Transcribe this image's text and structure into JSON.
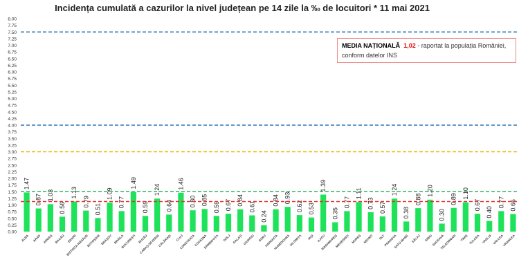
{
  "chart_data": {
    "type": "bar",
    "title": "Incidența cumulată a cazurilor la nivel județean pe 14 zile la ‰ de locuitori *  11 mai 2021",
    "categories": [
      "ALBA",
      "ARAD",
      "ARGEȘ",
      "BACĂU",
      "BIHOR",
      "BISTRIȚA-NĂSĂUD",
      "BOTOȘANI",
      "BRAȘOV",
      "BRĂILA",
      "BUCUREȘTI",
      "BUZĂU",
      "CARAȘ-SEVERIN",
      "CĂLĂRAȘI",
      "CLUJ",
      "CONSTANȚA",
      "COVASNA",
      "DÂMBOVIȚA",
      "DOLJ",
      "GALAȚI",
      "GIURGIU",
      "GORJ",
      "HARGHITA",
      "HUNEDOARA",
      "IALOMIȚA",
      "IAȘI",
      "ILFOV",
      "MARAMUREȘ",
      "MEHEDINȚI",
      "MUREȘ",
      "NEAMȚ",
      "OLT",
      "PRAHOVA",
      "SATU MARE",
      "SĂLAJ",
      "SIBIU",
      "SUCEAVA",
      "TELEORMAN",
      "TIMIȘ",
      "TULCEA",
      "VASLUI",
      "VÂLCEA",
      "VRANCEA"
    ],
    "values": [
      1.47,
      0.87,
      1.03,
      0.56,
      1.13,
      0.79,
      0.51,
      1.09,
      0.77,
      1.49,
      0.59,
      1.24,
      0.64,
      1.46,
      0.8,
      0.85,
      0.59,
      0.67,
      0.84,
      0.61,
      0.24,
      0.84,
      0.93,
      0.62,
      0.53,
      1.39,
      0.35,
      0.77,
      1.11,
      0.73,
      0.57,
      1.24,
      0.38,
      0.88,
      1.2,
      0.3,
      0.89,
      1.1,
      0.67,
      0.4,
      0.77,
      0.66
    ],
    "ylim": [
      0,
      8
    ],
    "ytick_step": 0.25,
    "bar_color": "#1ee35a",
    "reference_lines": [
      {
        "value": 7.5,
        "color": "#2e75b6",
        "style": "dashed"
      },
      {
        "value": 4.0,
        "color": "#2e75b6",
        "style": "dashed"
      },
      {
        "value": 3.0,
        "color": "#e6b800",
        "style": "dashed"
      },
      {
        "value": 1.5,
        "color": "#2ab36a",
        "style": "dashed"
      },
      {
        "value": 1.13,
        "color": "#e8322e",
        "style": "dashed"
      }
    ],
    "grid": false
  },
  "legend": {
    "bold": "MEDIA NAȚIONALĂ",
    "value": "1,02",
    "text": " - raportat la populația României, conform datelor INS"
  }
}
